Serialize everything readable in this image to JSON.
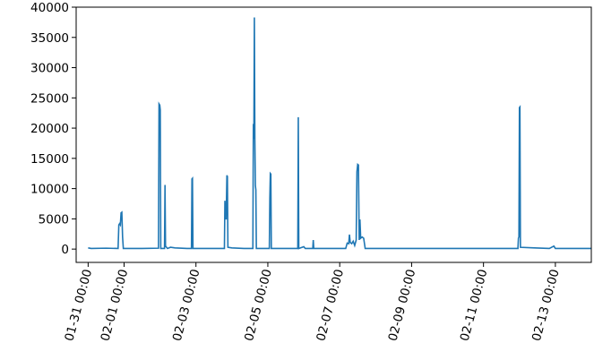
{
  "chart_data": {
    "type": "line",
    "title": "",
    "xlabel": "",
    "ylabel": "",
    "grid": false,
    "legend": "none",
    "ylim": [
      -2200,
      40000
    ],
    "xlim": [
      "2024-01-30T16:00",
      "2024-02-14T00:00"
    ],
    "xticks": [
      {
        "date": "2024-01-31T00:00",
        "label": "01-31 00:00"
      },
      {
        "date": "2024-02-01T00:00",
        "label": "02-01 00:00"
      },
      {
        "date": "2024-02-03T00:00",
        "label": "02-03 00:00"
      },
      {
        "date": "2024-02-05T00:00",
        "label": "02-05 00:00"
      },
      {
        "date": "2024-02-07T00:00",
        "label": "02-07 00:00"
      },
      {
        "date": "2024-02-09T00:00",
        "label": "02-09 00:00"
      },
      {
        "date": "2024-02-11T00:00",
        "label": "02-11 00:00"
      },
      {
        "date": "2024-02-13T00:00",
        "label": "02-13 00:00"
      }
    ],
    "yticks": [
      0,
      5000,
      10000,
      15000,
      20000,
      25000,
      30000,
      35000,
      40000
    ],
    "series": [
      {
        "color": "#1f77b4",
        "points": [
          [
            "2024-01-31T00:00",
            200
          ],
          [
            "2024-01-31T02:00",
            100
          ],
          [
            "2024-01-31T12:00",
            150
          ],
          [
            "2024-01-31T20:00",
            100
          ],
          [
            "2024-01-31T20:30",
            4000
          ],
          [
            "2024-01-31T21:00",
            4200
          ],
          [
            "2024-01-31T21:30",
            4000
          ],
          [
            "2024-01-31T22:00",
            6000
          ],
          [
            "2024-01-31T22:30",
            6100
          ],
          [
            "2024-01-31T23:00",
            2000
          ],
          [
            "2024-01-31T23:30",
            100
          ],
          [
            "2024-02-01T12:00",
            100
          ],
          [
            "2024-02-01T23:00",
            150
          ],
          [
            "2024-02-01T23:20",
            24000
          ],
          [
            "2024-02-01T23:50",
            23800
          ],
          [
            "2024-02-02T00:10",
            23000
          ],
          [
            "2024-02-02T00:30",
            100
          ],
          [
            "2024-02-02T03:00",
            100
          ],
          [
            "2024-02-02T03:20",
            10600
          ],
          [
            "2024-02-02T03:40",
            500
          ],
          [
            "2024-02-02T05:00",
            100
          ],
          [
            "2024-02-02T07:00",
            300
          ],
          [
            "2024-02-02T10:00",
            200
          ],
          [
            "2024-02-02T18:00",
            100
          ],
          [
            "2024-02-02T21:00",
            100
          ],
          [
            "2024-02-02T21:20",
            11600
          ],
          [
            "2024-02-02T21:40",
            11700
          ],
          [
            "2024-02-02T22:00",
            100
          ],
          [
            "2024-02-03T19:00",
            100
          ],
          [
            "2024-02-03T19:20",
            8000
          ],
          [
            "2024-02-03T19:40",
            5000
          ],
          [
            "2024-02-03T20:10",
            5000
          ],
          [
            "2024-02-03T20:40",
            12200
          ],
          [
            "2024-02-03T21:00",
            12000
          ],
          [
            "2024-02-03T21:20",
            300
          ],
          [
            "2024-02-04T00:00",
            200
          ],
          [
            "2024-02-04T08:00",
            100
          ],
          [
            "2024-02-04T14:00",
            100
          ],
          [
            "2024-02-04T14:20",
            20700
          ],
          [
            "2024-02-04T14:40",
            18200
          ],
          [
            "2024-02-04T15:00",
            38300
          ],
          [
            "2024-02-04T15:20",
            18000
          ],
          [
            "2024-02-04T15:40",
            10500
          ],
          [
            "2024-02-04T16:00",
            9800
          ],
          [
            "2024-02-04T16:20",
            100
          ],
          [
            "2024-02-05T01:00",
            100
          ],
          [
            "2024-02-05T01:20",
            8400
          ],
          [
            "2024-02-05T01:40",
            12500
          ],
          [
            "2024-02-05T02:00",
            12400
          ],
          [
            "2024-02-05T02:20",
            100
          ],
          [
            "2024-02-05T20:00",
            100
          ],
          [
            "2024-02-05T20:20",
            21800
          ],
          [
            "2024-02-05T20:40",
            100
          ],
          [
            "2024-02-06T00:00",
            400
          ],
          [
            "2024-02-06T01:00",
            100
          ],
          [
            "2024-02-06T06:00",
            100
          ],
          [
            "2024-02-06T06:20",
            1500
          ],
          [
            "2024-02-06T06:40",
            100
          ],
          [
            "2024-02-07T04:00",
            100
          ],
          [
            "2024-02-07T05:00",
            1000
          ],
          [
            "2024-02-07T06:00",
            900
          ],
          [
            "2024-02-07T06:30",
            2400
          ],
          [
            "2024-02-07T07:00",
            1100
          ],
          [
            "2024-02-07T08:00",
            900
          ],
          [
            "2024-02-07T09:00",
            1300
          ],
          [
            "2024-02-07T10:00",
            600
          ],
          [
            "2024-02-07T11:00",
            1500
          ],
          [
            "2024-02-07T11:30",
            12800
          ],
          [
            "2024-02-07T12:00",
            14000
          ],
          [
            "2024-02-07T12:30",
            13900
          ],
          [
            "2024-02-07T13:00",
            1500
          ],
          [
            "2024-02-07T13:30",
            4900
          ],
          [
            "2024-02-07T14:00",
            1800
          ],
          [
            "2024-02-07T15:00",
            2000
          ],
          [
            "2024-02-07T16:00",
            1800
          ],
          [
            "2024-02-07T17:00",
            100
          ],
          [
            "2024-02-11T23:00",
            100
          ],
          [
            "2024-02-11T23:20",
            1800
          ],
          [
            "2024-02-11T23:40",
            2000
          ],
          [
            "2024-02-12T00:00",
            23400
          ],
          [
            "2024-02-12T00:20",
            23500
          ],
          [
            "2024-02-12T00:40",
            300
          ],
          [
            "2024-02-12T10:00",
            200
          ],
          [
            "2024-02-12T20:00",
            100
          ],
          [
            "2024-02-12T23:00",
            500
          ],
          [
            "2024-02-13T00:00",
            100
          ],
          [
            "2024-02-13T12:00",
            100
          ],
          [
            "2024-02-14T00:00",
            100
          ]
        ]
      }
    ]
  }
}
